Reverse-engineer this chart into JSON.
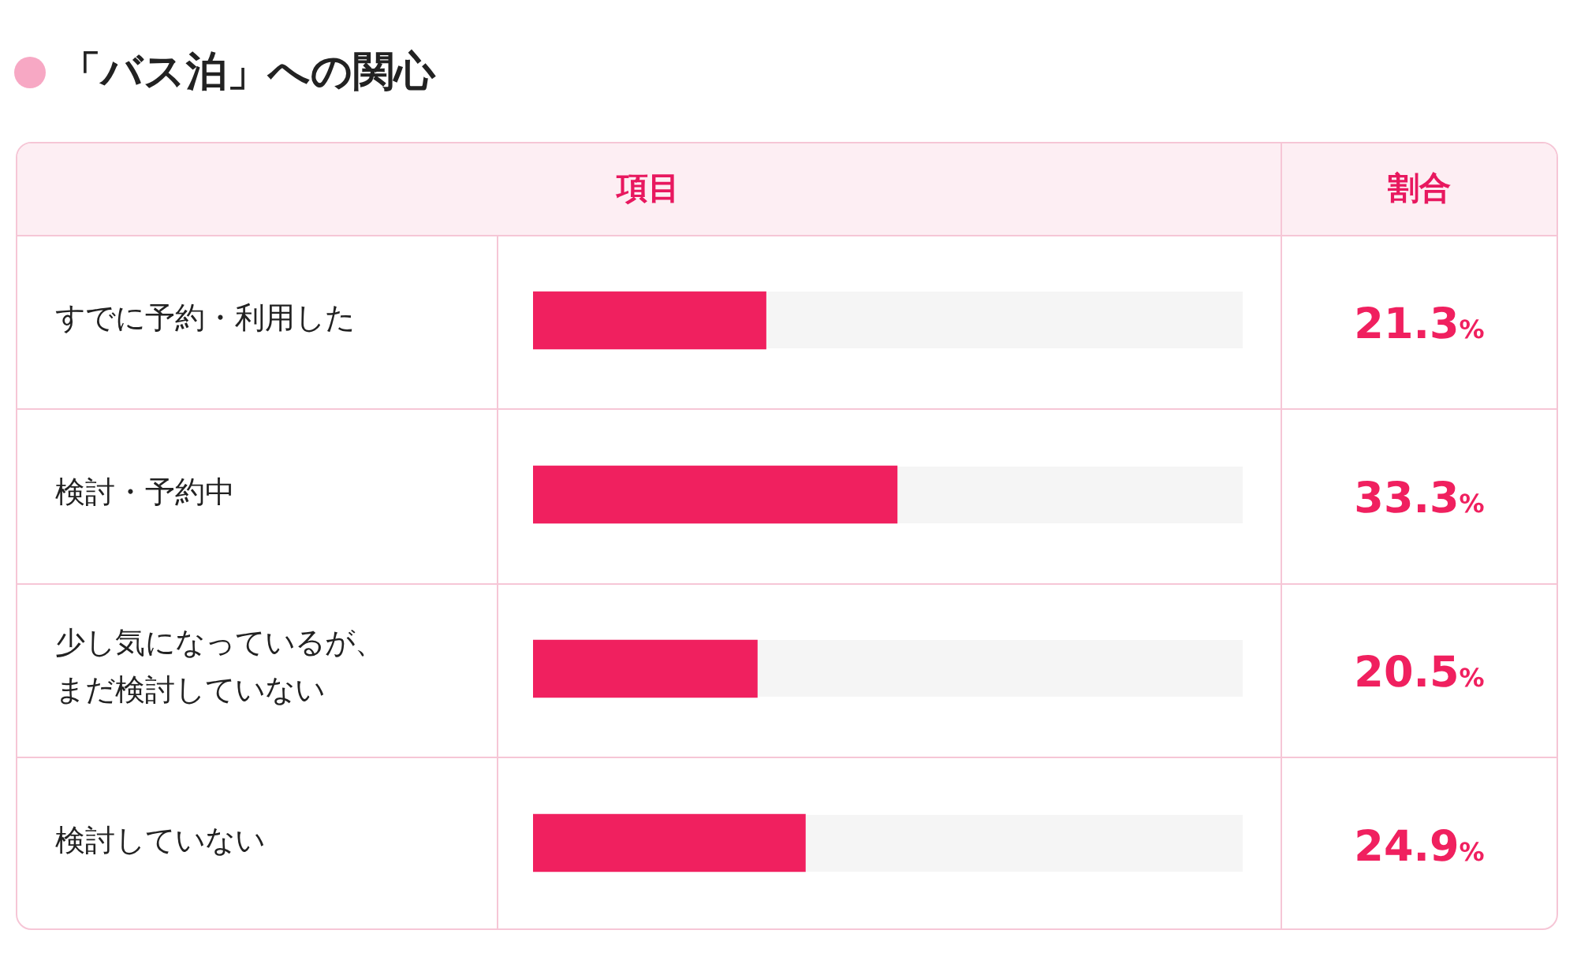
{
  "chart_data": {
    "type": "bar",
    "orientation": "horizontal",
    "title": "「バス泊」への関心",
    "annotations": [
      "項目",
      "割合"
    ],
    "categories": [
      "すでに予約・利用した",
      "検討・予約中",
      "少し気になっているが、まだ検討していない",
      "検討していない"
    ],
    "values": [
      21.3,
      33.3,
      20.5,
      24.9
    ],
    "value_labels": [
      "21.3%",
      "33.3%",
      "20.5%",
      "24.9%"
    ],
    "color": "#f0205f"
  }
}
